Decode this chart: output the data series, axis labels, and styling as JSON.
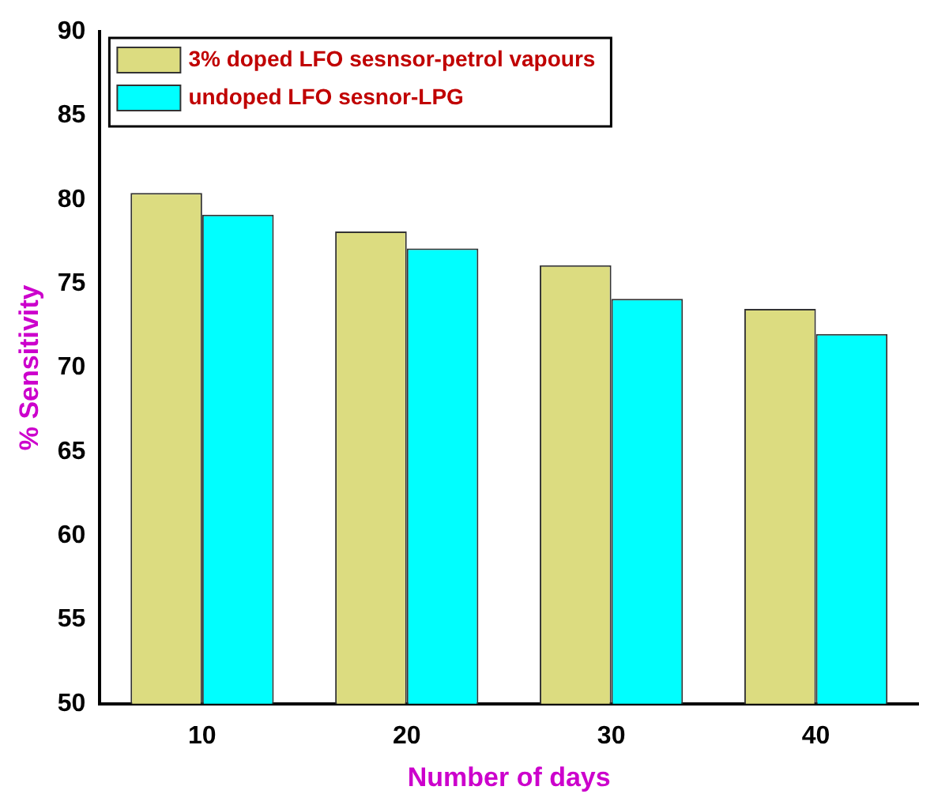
{
  "chart_data": {
    "type": "bar",
    "xlabel": "Number of days",
    "ylabel": "% Sensitivity",
    "categories": [
      "10",
      "20",
      "30",
      "40"
    ],
    "series": [
      {
        "name": "3% doped LFO sesnsor-petrol vapours",
        "color": "#dcdc80",
        "values": [
          80.4,
          78.1,
          76.1,
          73.5
        ]
      },
      {
        "name": "undoped LFO sesnor-LPG",
        "color": "#00ffff",
        "values": [
          79.1,
          77.1,
          74.1,
          72.0
        ]
      }
    ],
    "ylim": [
      50,
      90
    ],
    "yticks": [
      50,
      55,
      60,
      65,
      70,
      75,
      80,
      85,
      90
    ],
    "grid": false,
    "legend": "top left"
  }
}
